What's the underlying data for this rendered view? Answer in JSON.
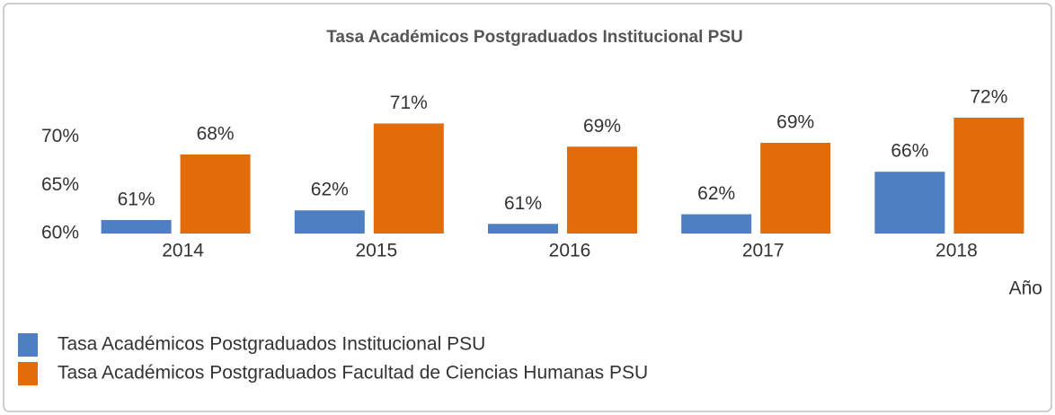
{
  "chart_data": {
    "type": "bar",
    "title": "Tasa Académicos Postgraduados Institucional PSU",
    "x_label": "Año",
    "categories": [
      "2014",
      "2015",
      "2016",
      "2017",
      "2018"
    ],
    "series": [
      {
        "name": "Tasa Académicos Postgraduados Institucional PSU",
        "color": "#4e7fc3",
        "values": [
          61.4,
          62.4,
          61.0,
          62.0,
          66.4
        ],
        "value_labels": [
          "61%",
          "62%",
          "61%",
          "62%",
          "66%"
        ]
      },
      {
        "name": "Tasa Académicos Postgraduados Facultad de Ciencias Humanas PSU",
        "color": "#e36c0a",
        "values": [
          68.2,
          71.4,
          69.0,
          69.4,
          72.0
        ],
        "value_labels": [
          "68%",
          "71%",
          "69%",
          "69%",
          "72%"
        ]
      }
    ],
    "ylim": [
      60,
      75
    ],
    "yticks": [
      {
        "value": 60,
        "label": "60%"
      },
      {
        "value": 65,
        "label": "65%"
      },
      {
        "value": 70,
        "label": "70%"
      }
    ],
    "grid": false,
    "legend": "bottom"
  }
}
